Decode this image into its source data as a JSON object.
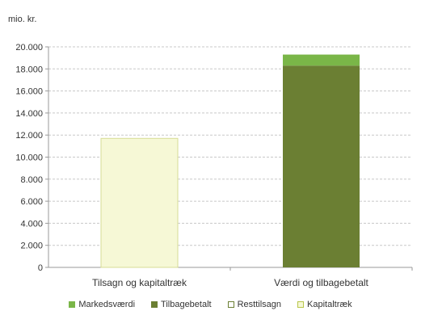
{
  "chart_data": {
    "type": "bar",
    "stacked": true,
    "unit_label": "mio. kr.",
    "categories": [
      "Tilsagn og kapitaltræk",
      "Værdi og tilbagebetalt"
    ],
    "series": [
      {
        "name": "Markedsværdi",
        "values": [
          0,
          1000
        ],
        "color": "#7ab648",
        "swatch_border": "#7ab648"
      },
      {
        "name": "Tilbagebetalt",
        "values": [
          0,
          18300
        ],
        "color": "#6b7f33",
        "swatch_border": "#6b7f33"
      },
      {
        "name": "Resttilsagn",
        "values": [
          0,
          0
        ],
        "color": "#ffffff",
        "swatch_border": "#6b7f33"
      },
      {
        "name": "Kapitaltræk",
        "values": [
          11700,
          0
        ],
        "color": "#f6f8d6",
        "swatch_border": "#b8c64a"
      }
    ],
    "ylim": [
      0,
      20000
    ],
    "yticks": [
      0,
      2000,
      4000,
      6000,
      8000,
      10000,
      12000,
      14000,
      16000,
      18000,
      20000
    ],
    "ytick_labels": [
      "0",
      "2.000",
      "4.000",
      "6.000",
      "8.000",
      "10.000",
      "12.000",
      "14.000",
      "16.000",
      "18.000",
      "20.000"
    ],
    "grid": true,
    "legend_position": "bottom"
  }
}
